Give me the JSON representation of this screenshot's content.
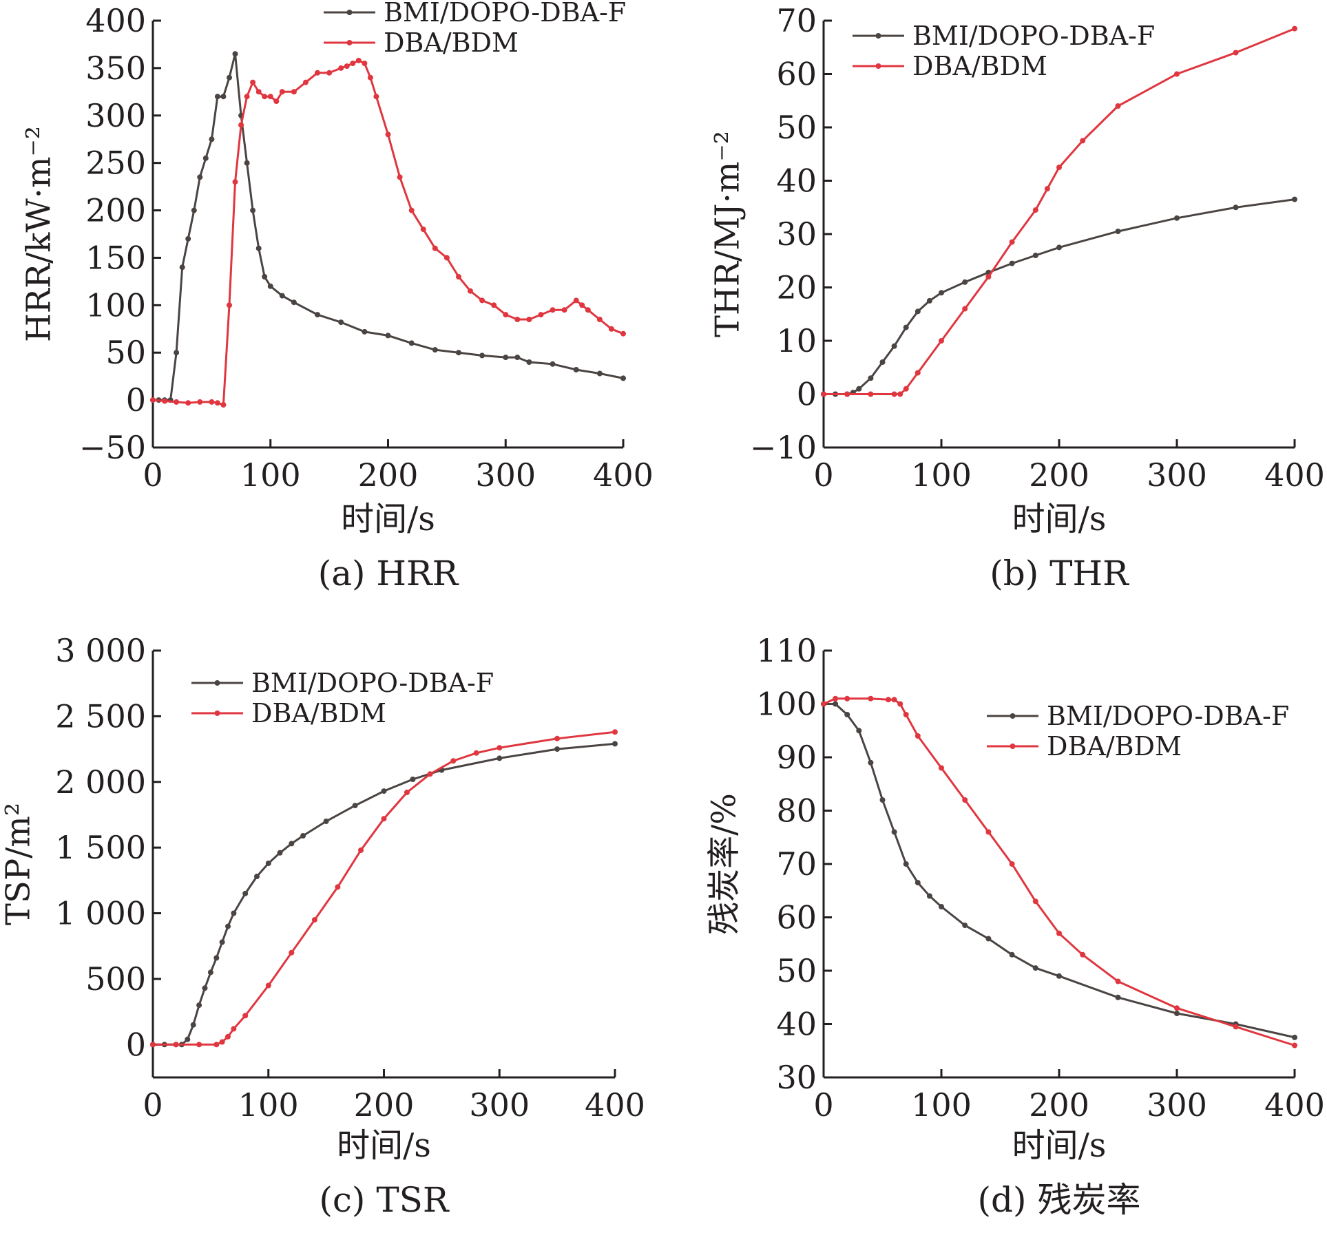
{
  "colors": {
    "bmi": "#4a4442",
    "dba": "#e0363f",
    "axis": "#231f20"
  },
  "chart_data": [
    {
      "id": "a",
      "type": "line",
      "caption": "(a) HRR",
      "ylabel": "HRR/kW·m⁻²",
      "xlabel": "时间/s",
      "xlim": [
        0,
        400
      ],
      "ylim": [
        -50,
        400
      ],
      "xticks": [
        0,
        100,
        200,
        300,
        400
      ],
      "yticks": [
        -50,
        0,
        50,
        100,
        150,
        200,
        250,
        300,
        350,
        400
      ],
      "ytick_labels": [
        "−50",
        "0",
        "50",
        "100",
        "150",
        "200",
        "250",
        "300",
        "350",
        "400"
      ],
      "legend_position": "top-center",
      "series": [
        {
          "name": "BMI/DOPO-DBA-F",
          "color": "bmi",
          "x": [
            0,
            5,
            10,
            15,
            20,
            25,
            30,
            35,
            40,
            45,
            50,
            55,
            60,
            65,
            70,
            75,
            80,
            85,
            90,
            95,
            100,
            110,
            120,
            140,
            160,
            180,
            200,
            220,
            240,
            260,
            280,
            300,
            310,
            320,
            340,
            360,
            380,
            400
          ],
          "y": [
            0,
            0,
            0,
            0,
            50,
            140,
            170,
            200,
            235,
            255,
            275,
            320,
            320,
            340,
            365,
            300,
            250,
            200,
            160,
            130,
            120,
            110,
            103,
            90,
            82,
            72,
            68,
            60,
            53,
            50,
            47,
            45,
            45,
            40,
            38,
            32,
            28,
            23
          ]
        },
        {
          "name": "DBA/BDM",
          "color": "dba",
          "x": [
            0,
            10,
            20,
            30,
            40,
            50,
            55,
            60,
            65,
            70,
            75,
            80,
            85,
            90,
            95,
            100,
            105,
            110,
            120,
            130,
            140,
            150,
            160,
            165,
            170,
            175,
            180,
            185,
            190,
            200,
            210,
            220,
            230,
            240,
            250,
            260,
            270,
            280,
            290,
            300,
            310,
            320,
            330,
            340,
            350,
            360,
            365,
            370,
            380,
            390,
            400
          ],
          "y": [
            0,
            -1,
            -2,
            -3,
            -2,
            -2,
            -3,
            -5,
            100,
            230,
            290,
            320,
            335,
            325,
            320,
            320,
            315,
            325,
            325,
            335,
            345,
            345,
            350,
            352,
            355,
            358,
            355,
            340,
            320,
            280,
            235,
            200,
            180,
            160,
            150,
            130,
            115,
            105,
            100,
            90,
            85,
            85,
            90,
            95,
            95,
            105,
            100,
            95,
            85,
            75,
            70
          ]
        }
      ]
    },
    {
      "id": "b",
      "type": "line",
      "caption": "(b) THR",
      "ylabel": "THR/MJ·m⁻²",
      "xlabel": "时间/s",
      "xlim": [
        0,
        400
      ],
      "ylim": [
        -10,
        70
      ],
      "xticks": [
        0,
        100,
        200,
        300,
        400
      ],
      "yticks": [
        -10,
        0,
        10,
        20,
        30,
        40,
        50,
        60,
        70
      ],
      "ytick_labels": [
        "−10",
        "0",
        "10",
        "20",
        "30",
        "40",
        "50",
        "60",
        "70"
      ],
      "legend_position": "top-left",
      "series": [
        {
          "name": "BMI/DOPO-DBA-F",
          "color": "bmi",
          "x": [
            0,
            10,
            20,
            25,
            30,
            40,
            50,
            60,
            70,
            80,
            90,
            100,
            120,
            140,
            160,
            180,
            200,
            250,
            300,
            350,
            400
          ],
          "y": [
            0,
            0,
            0,
            0.3,
            1,
            3,
            6,
            9,
            12.5,
            15.5,
            17.5,
            19,
            21,
            22.8,
            24.5,
            26,
            27.5,
            30.5,
            33,
            35,
            36.5
          ]
        },
        {
          "name": "DBA/BDM",
          "color": "dba",
          "x": [
            0,
            20,
            40,
            60,
            65,
            70,
            80,
            100,
            120,
            140,
            160,
            180,
            190,
            200,
            220,
            250,
            300,
            350,
            400
          ],
          "y": [
            0,
            0,
            0,
            0,
            0,
            1,
            4,
            10,
            16,
            22,
            28.5,
            34.5,
            38.5,
            42.5,
            47.5,
            54,
            60,
            64,
            68.5
          ]
        }
      ]
    },
    {
      "id": "c",
      "type": "line",
      "caption": "(c) TSR",
      "ylabel": "TSP/m²",
      "xlabel": "时间/s",
      "xlim": [
        0,
        400
      ],
      "ylim": [
        -250,
        3000
      ],
      "xticks": [
        0,
        100,
        200,
        300,
        400
      ],
      "yticks": [
        0,
        500,
        1000,
        1500,
        2000,
        2500,
        3000
      ],
      "ytick_labels": [
        "0",
        "500",
        "1 000",
        "1 500",
        "2 000",
        "2 500",
        "3 000"
      ],
      "legend_position": "top-left",
      "series": [
        {
          "name": "BMI/DOPO-DBA-F",
          "color": "bmi",
          "x": [
            0,
            10,
            20,
            25,
            30,
            35,
            40,
            45,
            50,
            55,
            60,
            65,
            70,
            80,
            90,
            100,
            110,
            120,
            130,
            150,
            175,
            200,
            225,
            250,
            300,
            350,
            400
          ],
          "y": [
            0,
            0,
            0,
            0,
            40,
            150,
            300,
            430,
            550,
            660,
            780,
            900,
            1000,
            1150,
            1280,
            1380,
            1460,
            1530,
            1590,
            1700,
            1820,
            1930,
            2020,
            2090,
            2180,
            2250,
            2290
          ]
        },
        {
          "name": "DBA/BDM",
          "color": "dba",
          "x": [
            0,
            20,
            40,
            55,
            60,
            65,
            70,
            80,
            100,
            120,
            140,
            160,
            180,
            200,
            220,
            240,
            260,
            280,
            300,
            350,
            400
          ],
          "y": [
            0,
            0,
            0,
            0,
            20,
            60,
            120,
            220,
            450,
            700,
            950,
            1200,
            1480,
            1720,
            1920,
            2060,
            2160,
            2220,
            2260,
            2330,
            2380
          ]
        }
      ]
    },
    {
      "id": "d",
      "type": "line",
      "caption": "(d) 残炭率",
      "ylabel": "残炭率/%",
      "xlabel": "时间/s",
      "xlim": [
        0,
        400
      ],
      "ylim": [
        30,
        110
      ],
      "xticks": [
        0,
        100,
        200,
        300,
        400
      ],
      "yticks": [
        30,
        40,
        50,
        60,
        70,
        80,
        90,
        100,
        110
      ],
      "ytick_labels": [
        "30",
        "40",
        "50",
        "60",
        "70",
        "80",
        "90",
        "100",
        "110"
      ],
      "legend_position": "top-right",
      "series": [
        {
          "name": "BMI/DOPO-DBA-F",
          "color": "bmi",
          "x": [
            0,
            10,
            20,
            30,
            40,
            50,
            60,
            70,
            80,
            90,
            100,
            120,
            140,
            160,
            180,
            200,
            250,
            300,
            350,
            400
          ],
          "y": [
            100,
            100,
            98,
            95,
            89,
            82,
            76,
            70,
            66.5,
            64,
            62,
            58.5,
            56,
            53,
            50.5,
            49,
            45,
            42,
            40,
            37.5
          ]
        },
        {
          "name": "DBA/BDM",
          "color": "dba",
          "x": [
            0,
            10,
            20,
            40,
            55,
            60,
            65,
            70,
            80,
            100,
            120,
            140,
            160,
            180,
            200,
            220,
            250,
            300,
            350,
            400
          ],
          "y": [
            100,
            101,
            101,
            101,
            100.8,
            100.8,
            100,
            98,
            94,
            88,
            82,
            76,
            70,
            63,
            57,
            53,
            48,
            43,
            39.5,
            36
          ]
        }
      ]
    }
  ]
}
